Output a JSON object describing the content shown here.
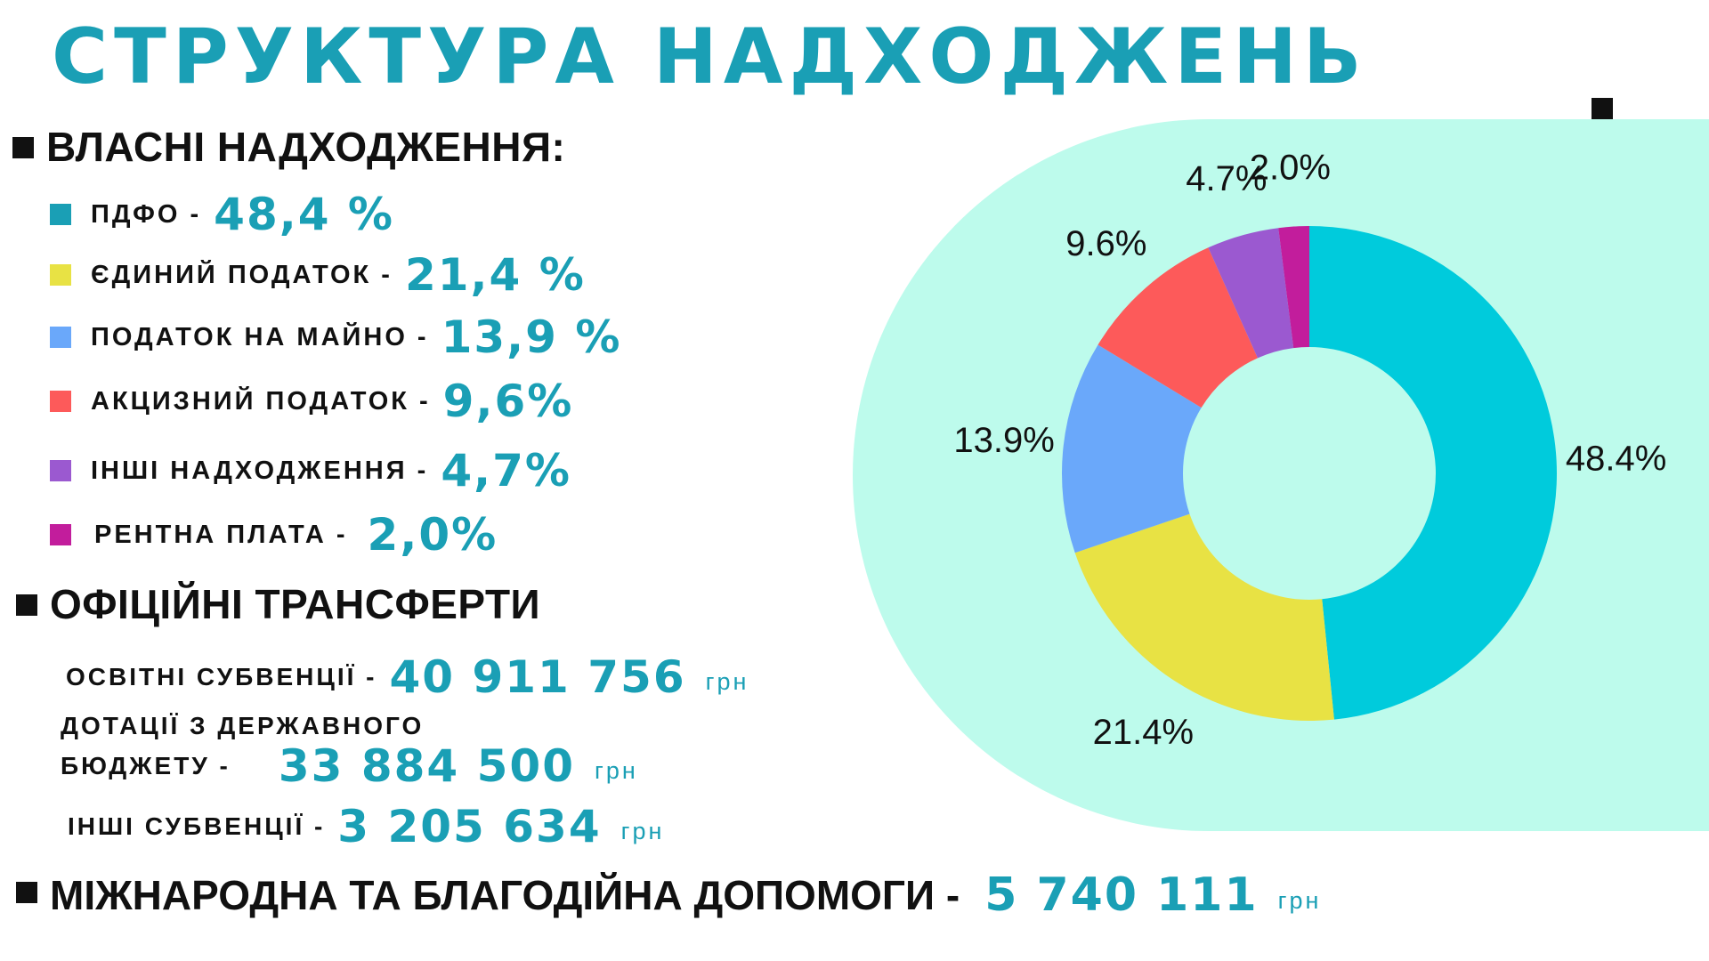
{
  "title": "СТРУКТУРА НАДХОДЖЕНЬ",
  "own_revenues": {
    "heading": "ВЛАСНІ НАДХОДЖЕННЯ:",
    "items": [
      {
        "label": "ПДФО -",
        "value": "48,4 %",
        "color": "#1a9fb5"
      },
      {
        "label": "ЄДИНИЙ ПОДАТОК -",
        "value": "21,4 %",
        "color": "#e8e244"
      },
      {
        "label": "ПОДАТОК НА МАЙНО -",
        "value": "13,9 %",
        "color": "#6aa8fa"
      },
      {
        "label": "АКЦИЗНИЙ ПОДАТОК -",
        "value": "9,6%",
        "color": "#fd5a5a"
      },
      {
        "label": "ІНШІ НАДХОДЖЕННЯ -",
        "value": "4,7%",
        "color": "#9b59d0"
      },
      {
        "label": "РЕНТНА ПЛАТА -",
        "value": "2,0%",
        "color": "#c21d9c"
      }
    ]
  },
  "transfers": {
    "heading": "ОФІЦІЙНІ ТРАНСФЕРТИ",
    "education": {
      "label": "ОСВІТНІ СУБВЕНЦІЇ -",
      "value": "40 911 756",
      "unit": "грн"
    },
    "dotations": {
      "label_line1": "ДОТАЦІЇ З ДЕРЖАВНОГО",
      "label_line2": "БЮДЖЕТУ -",
      "value": "33 884 500",
      "unit": "грн"
    },
    "other": {
      "label": "ІНШІ СУБВЕНЦІЇ -",
      "value": "3 205 634",
      "unit": "грн"
    }
  },
  "international": {
    "label": "МІЖНАРОДНА ТА БЛАГОДІЙНА ДОПОМОГИ -",
    "value": "5 740 111",
    "unit": "грн"
  },
  "chart_data": {
    "type": "pie",
    "donut": true,
    "categories": [
      "ПДФО",
      "ЄДИНИЙ ПОДАТОК",
      "ПОДАТОК НА МАЙНО",
      "АКЦИЗНИЙ ПОДАТОК",
      "ІНШІ НАДХОДЖЕННЯ",
      "РЕНТНА ПЛАТА"
    ],
    "values": [
      48.4,
      21.4,
      13.9,
      9.6,
      4.7,
      2.0
    ],
    "labels": [
      "48.4%",
      "21.4%",
      "13.9%",
      "9.6%",
      "4.7%",
      "2.0%"
    ],
    "colors": [
      "#00cbdc",
      "#e8e244",
      "#6aa8fa",
      "#fd5a5a",
      "#9b59d0",
      "#c21d9c"
    ],
    "start": "12 o'clock",
    "direction": "clockwise"
  }
}
